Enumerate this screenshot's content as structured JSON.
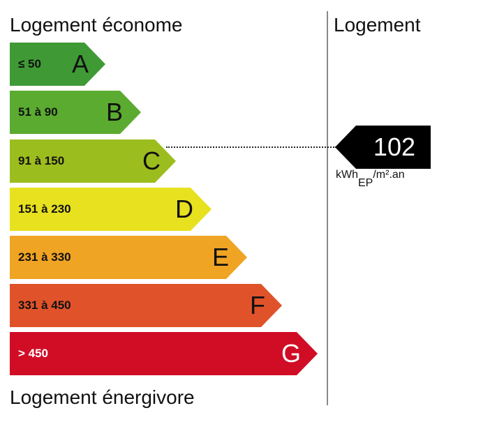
{
  "header": {
    "left_title": "Logement économe",
    "right_title": "Logement"
  },
  "footer": {
    "bottom_title": "Logement énergivore"
  },
  "chart_data": {
    "type": "bar",
    "categories": [
      "A",
      "B",
      "C",
      "D",
      "E",
      "F",
      "G"
    ],
    "ranges": [
      "≤ 50",
      "51 à 90",
      "91 à 150",
      "151 à 230",
      "231 à 330",
      "331 à 450",
      "> 450"
    ],
    "colors": [
      "#3f9a35",
      "#5bab30",
      "#9cbd1e",
      "#e8e11f",
      "#f0a423",
      "#e0532a",
      "#d10d26"
    ],
    "value": 102,
    "value_class": "C",
    "unit_main": "kWh",
    "unit_sub": "EP",
    "unit_tail": "/m².an"
  }
}
